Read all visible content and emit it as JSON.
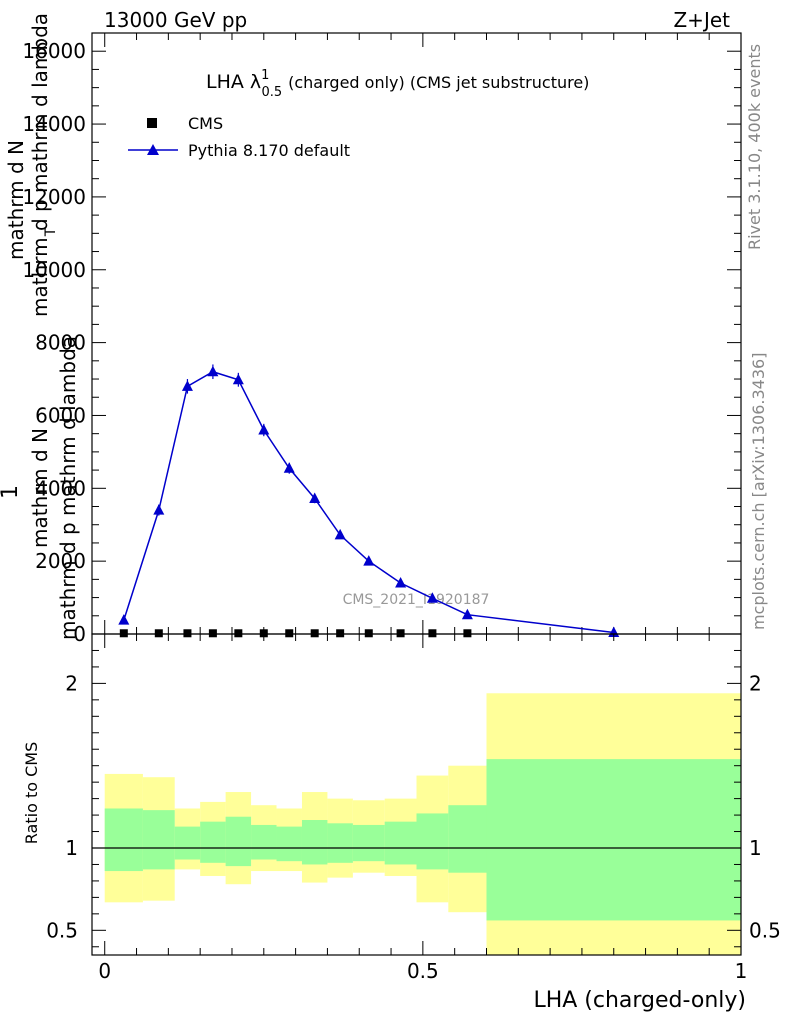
{
  "header": {
    "left": "13000 GeV pp",
    "right": "Z+Jet"
  },
  "side_labels": {
    "rivet": "Rivet 3.1.10,  400k events",
    "mcplots": "mcplots.cern.ch [arXiv:1306.3436]"
  },
  "chart_data": [
    {
      "type": "line",
      "title_main": "LHA λ",
      "title_sup": "1",
      "title_sub": "0.5",
      "title_rest": "(charged only) (CMS jet substructure)",
      "watermark": "CMS_2021_I1920187",
      "ylabel_frac": "1",
      "ylabel_main_num": "mathrm d N",
      "ylabel_main_den": "mathrm d p  mathrm d lambda",
      "ylabel_main_den_sub": "T",
      "ylabel_back_num": "mathrm d N",
      "ylabel_back_den": "mathrm d p  mathrm d lambda",
      "ylabel_back_den_sub": "T",
      "ylim": [
        0,
        16500
      ],
      "xlim": [
        -0.02,
        1.0
      ],
      "yticks": [
        0,
        2000,
        4000,
        6000,
        8000,
        10000,
        12000,
        14000,
        16000
      ],
      "yticklabels": [
        "0",
        "2000",
        "4000",
        "6000",
        "8000",
        "10000",
        "12000",
        "14000",
        "16000"
      ],
      "legend": [
        {
          "name": "CMS",
          "marker": "square",
          "color": "#000000"
        },
        {
          "name": "Pythia 8.170 default",
          "marker": "triangle",
          "color": "#0000cc"
        }
      ],
      "legend_position": "top-left",
      "series": [
        {
          "name": "CMS",
          "color": "#000000",
          "x": [
            0.03,
            0.085,
            0.13,
            0.17,
            0.21,
            0.25,
            0.29,
            0.33,
            0.37,
            0.415,
            0.465,
            0.515,
            0.57
          ],
          "y": [
            20,
            20,
            20,
            20,
            20,
            20,
            20,
            20,
            20,
            20,
            20,
            20,
            20
          ]
        },
        {
          "name": "Pythia 8.170 default",
          "color": "#0000cc",
          "x": [
            0.03,
            0.085,
            0.13,
            0.17,
            0.21,
            0.25,
            0.29,
            0.33,
            0.37,
            0.415,
            0.465,
            0.515,
            0.57,
            0.8
          ],
          "y": [
            380,
            3400,
            6800,
            7200,
            6980,
            5600,
            4550,
            3720,
            2720,
            2000,
            1400,
            980,
            530,
            40
          ],
          "err": [
            60,
            150,
            200,
            200,
            190,
            170,
            150,
            130,
            110,
            90,
            70,
            60,
            40,
            10
          ]
        }
      ]
    },
    {
      "type": "area",
      "ylabel": "Ratio to CMS",
      "xlabel": "LHA (charged-only)",
      "ylim": [
        0.35,
        2.3
      ],
      "xlim": [
        -0.02,
        1.0
      ],
      "yticks": [
        0.5,
        1,
        2
      ],
      "yticklabels": [
        "0.5",
        "1",
        "2"
      ],
      "xticks": [
        0,
        0.5,
        1
      ],
      "xticklabels": [
        "0",
        "0.5",
        "1"
      ],
      "reference_line": 1,
      "bands": {
        "edges": [
          0.0,
          0.06,
          0.11,
          0.15,
          0.19,
          0.23,
          0.27,
          0.31,
          0.35,
          0.39,
          0.44,
          0.49,
          0.54,
          0.6,
          1.0
        ],
        "inner_low": [
          0.86,
          0.87,
          0.93,
          0.91,
          0.89,
          0.93,
          0.92,
          0.9,
          0.91,
          0.92,
          0.9,
          0.87,
          0.85,
          0.56
        ],
        "inner_high": [
          1.24,
          1.23,
          1.13,
          1.16,
          1.19,
          1.14,
          1.13,
          1.17,
          1.15,
          1.14,
          1.16,
          1.21,
          1.26,
          1.54
        ],
        "outer_low": [
          0.67,
          0.68,
          0.87,
          0.83,
          0.78,
          0.86,
          0.86,
          0.79,
          0.82,
          0.85,
          0.83,
          0.67,
          0.61,
          0.35
        ],
        "outer_high": [
          1.45,
          1.43,
          1.24,
          1.28,
          1.34,
          1.26,
          1.24,
          1.34,
          1.3,
          1.29,
          1.3,
          1.44,
          1.5,
          1.94
        ],
        "inner_color": "#99ff99",
        "outer_color": "#ffff99"
      }
    }
  ]
}
